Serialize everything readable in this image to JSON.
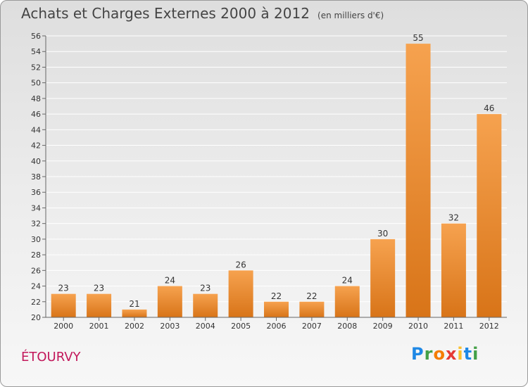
{
  "header": {
    "title": "Achats et Charges Externes 2000 à 2012",
    "unit_note": "(en milliers d'€)"
  },
  "footer": {
    "town": "ÉTOURVY",
    "logo_text": "Proxiti",
    "logo_letters": [
      {
        "ch": "P",
        "color": "#1e88e5"
      },
      {
        "ch": "r",
        "color": "#43a047"
      },
      {
        "ch": "o",
        "color": "#f57c00"
      },
      {
        "ch": "x",
        "color": "#e53935"
      },
      {
        "ch": "i",
        "color": "#fbc02d"
      },
      {
        "ch": "t",
        "color": "#1e88e5"
      },
      {
        "ch": "i",
        "color": "#43a047"
      }
    ]
  },
  "colors": {
    "bar_light": "#f6a24f",
    "bar_dark": "#d87418",
    "grid": "#ffffff",
    "axis": "#666666",
    "text": "#333333"
  },
  "chart_data": {
    "type": "bar",
    "title": "Achats et Charges Externes 2000 à 2012",
    "subtitle": "(en milliers d'€)",
    "categories": [
      "2000",
      "2001",
      "2002",
      "2003",
      "2004",
      "2005",
      "2006",
      "2007",
      "2008",
      "2009",
      "2010",
      "2011",
      "2012"
    ],
    "values": [
      23,
      23,
      21,
      24,
      23,
      26,
      22,
      22,
      24,
      30,
      55,
      32,
      46
    ],
    "ylim": [
      20,
      56
    ],
    "yticks": [
      20,
      22,
      24,
      26,
      28,
      30,
      32,
      34,
      36,
      38,
      40,
      42,
      44,
      46,
      48,
      50,
      52,
      54,
      56
    ],
    "grid": true,
    "data_labels": true
  }
}
